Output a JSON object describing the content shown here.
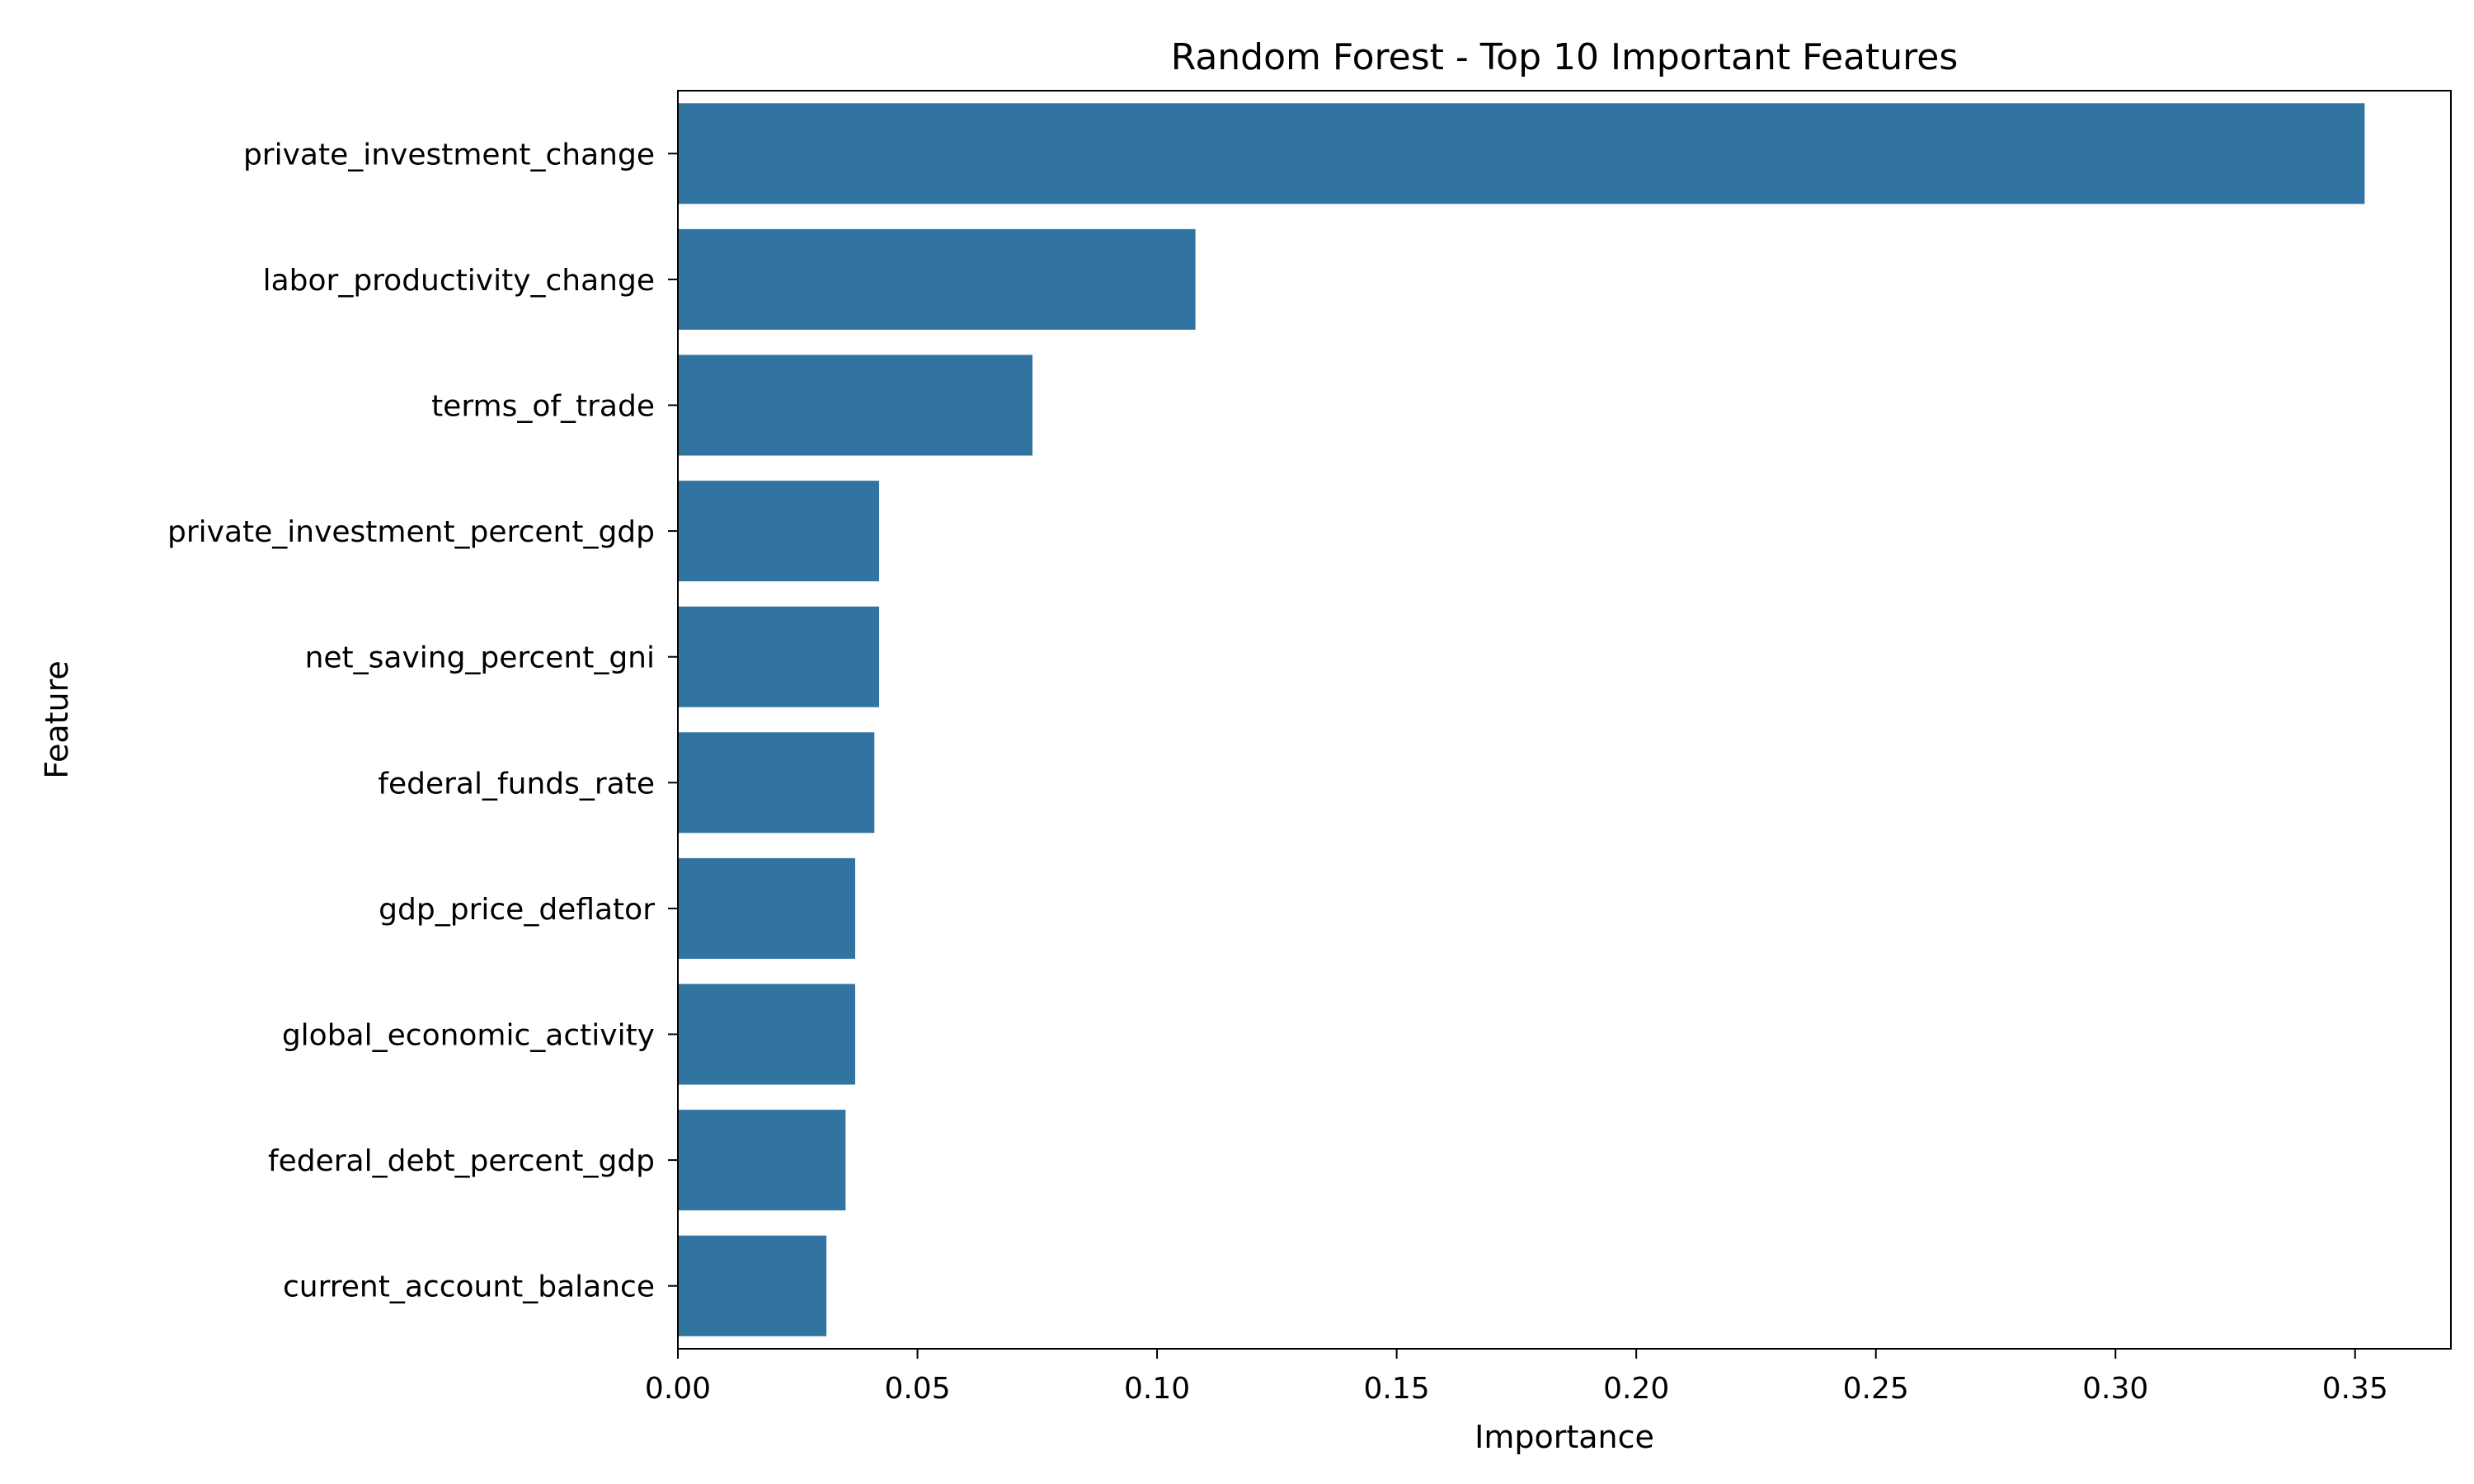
{
  "chart_data": {
    "type": "bar",
    "orientation": "horizontal",
    "title": "Random Forest - Top 10 Important Features",
    "xlabel": "Importance",
    "ylabel": "Feature",
    "categories": [
      "private_investment_change",
      "labor_productivity_change",
      "terms_of_trade",
      "private_investment_percent_gdp",
      "net_saving_percent_gni",
      "federal_funds_rate",
      "gdp_price_deflator",
      "global_economic_activity",
      "federal_debt_percent_gdp",
      "current_account_balance"
    ],
    "values": [
      0.352,
      0.108,
      0.074,
      0.042,
      0.042,
      0.041,
      0.037,
      0.037,
      0.035,
      0.031
    ],
    "xlim": [
      0,
      0.37
    ],
    "xticks": [
      0.0,
      0.05,
      0.1,
      0.15,
      0.2,
      0.25,
      0.3,
      0.35
    ],
    "xtick_labels": [
      "0.00",
      "0.05",
      "0.10",
      "0.15",
      "0.20",
      "0.25",
      "0.30",
      "0.35"
    ],
    "grid": false,
    "bar_color": "#3274a1"
  }
}
